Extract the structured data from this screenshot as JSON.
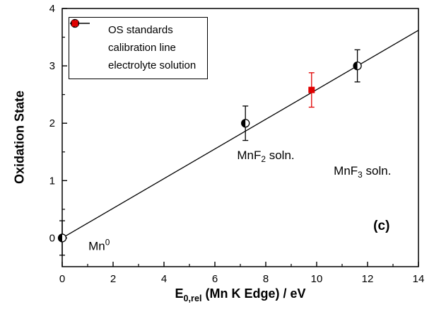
{
  "chart_data": {
    "type": "scatter",
    "title": "",
    "xlabel": {
      "pre": "E",
      "sub": "0,rel",
      "post": " (Mn K Edge) / eV"
    },
    "ylabel": "Oxidation State",
    "xlim": [
      0,
      14
    ],
    "ylim": [
      -0.5,
      4
    ],
    "x_ticks": [
      0,
      2,
      4,
      6,
      8,
      10,
      12,
      14
    ],
    "y_ticks": [
      0,
      1,
      2,
      3,
      4
    ],
    "x_minor_step": 1,
    "y_minor_step": 0.5,
    "grid": "off",
    "colors": {
      "black": "#000000",
      "red": "#e00000",
      "background": "#ffffff"
    },
    "series": [
      {
        "name": "OS standards",
        "marker": "half-filled-circle",
        "color": "#000000",
        "points": [
          {
            "x": 0.0,
            "y": 0.0,
            "yerr": 0.3
          },
          {
            "x": 7.2,
            "y": 2.0,
            "yerr": 0.3
          },
          {
            "x": 11.6,
            "y": 3.0,
            "yerr": 0.28
          }
        ]
      },
      {
        "name": "electrolyte solution",
        "marker": "filled-square",
        "color": "#e00000",
        "points": [
          {
            "x": 9.8,
            "y": 2.58,
            "yerr": 0.3
          }
        ]
      }
    ],
    "line": {
      "name": "calibration line",
      "color": "#000000",
      "x1": 0,
      "y1": 0,
      "x2": 14,
      "y2": 3.62
    },
    "legend": {
      "position": "top-left",
      "items": [
        {
          "label": "OS standards",
          "marker": "half-filled-circle"
        },
        {
          "label": "calibration line",
          "marker": "line"
        },
        {
          "label": "electrolyte solution",
          "marker": "filled-square"
        }
      ]
    },
    "annotations": [
      {
        "parts": {
          "pre": "Mn",
          "sup": "0",
          "post": ""
        },
        "x": 1.45,
        "y": -0.13,
        "bold": false
      },
      {
        "parts": {
          "pre": "MnF",
          "sub": "2",
          "post": " soln."
        },
        "x": 8.0,
        "y": 1.42,
        "bold": false
      },
      {
        "parts": {
          "pre": "MnF",
          "sub": "3",
          "post": " soln."
        },
        "x": 11.8,
        "y": 1.15,
        "bold": false
      },
      {
        "parts": {
          "pre": "(c)",
          "post": ""
        },
        "x": 12.55,
        "y": 0.2,
        "bold": true
      }
    ]
  }
}
